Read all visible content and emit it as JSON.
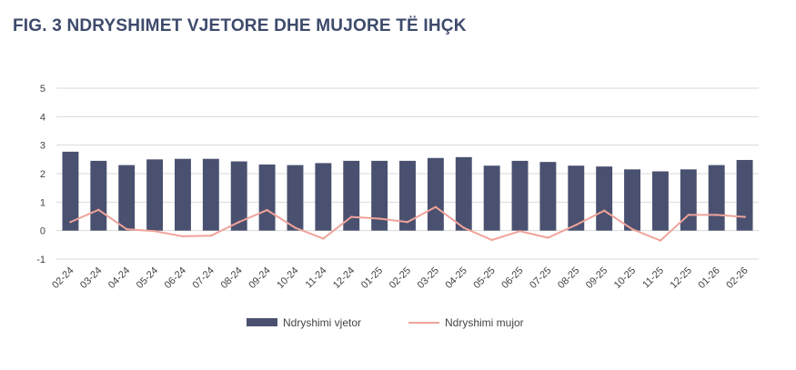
{
  "figure": {
    "title": "FIG. 3 NDRYSHIMET VJETORE DHE MUJORE TË IHÇK"
  },
  "chart_data": {
    "type": "bar",
    "title": "FIG. 3 NDRYSHIMET VJETORE DHE MUJORE TË IHÇK",
    "categories": [
      "02-24",
      "03-24",
      "04-24",
      "05-24",
      "06-24",
      "07-24",
      "08-24",
      "09-24",
      "10-24",
      "11-24",
      "12-24",
      "01-25",
      "02-25",
      "03-25",
      "04-25",
      "05-25",
      "06-25",
      "07-25",
      "08-25",
      "09-25",
      "10-25",
      "11-25",
      "12-25",
      "01-26",
      "02-26"
    ],
    "ylim": [
      -1,
      5
    ],
    "yticks": [
      -1,
      0,
      1,
      2,
      3,
      4,
      5
    ],
    "grid": true,
    "legend_position": "bottom",
    "series": [
      {
        "name": "Ndryshimi vjetor",
        "type": "bar",
        "color": "#4a5170",
        "values": [
          2.77,
          2.45,
          2.3,
          2.5,
          2.52,
          2.52,
          2.43,
          2.32,
          2.3,
          2.37,
          2.45,
          2.45,
          2.45,
          2.55,
          2.58,
          2.28,
          2.45,
          2.41,
          2.28,
          2.25,
          2.15,
          2.08,
          2.15,
          2.3,
          2.48
        ]
      },
      {
        "name": "Ndryshimi mujor",
        "type": "line",
        "color": "#f0a39a",
        "values": [
          0.3,
          0.73,
          0.05,
          -0.02,
          -0.2,
          -0.18,
          0.3,
          0.72,
          0.1,
          -0.28,
          0.48,
          0.42,
          0.3,
          0.83,
          0.1,
          -0.33,
          -0.02,
          -0.25,
          0.2,
          0.7,
          0.05,
          -0.35,
          0.55,
          0.55,
          0.48
        ]
      }
    ]
  }
}
